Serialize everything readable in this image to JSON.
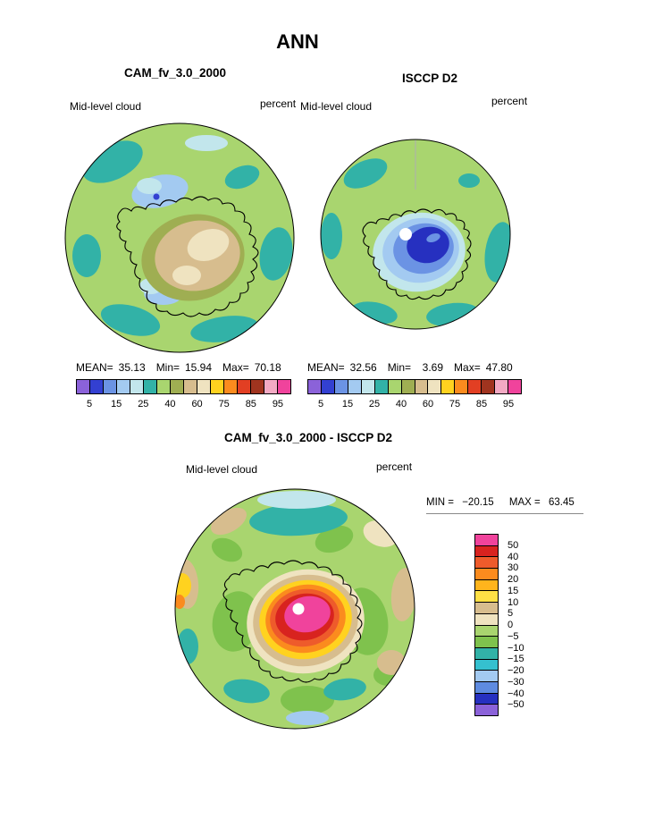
{
  "figure": {
    "season_title": "ANN",
    "background": "#ffffff"
  },
  "panels": {
    "cam": {
      "title": "CAM_fv_3.0_2000",
      "field": "Mid-level cloud",
      "units": "percent",
      "stats": {
        "mean_label": "MEAN=",
        "mean": "35.13",
        "min_label": "Min=",
        "min": "15.94",
        "max_label": "Max=",
        "max": "70.18"
      },
      "ticks": [
        "5",
        "15",
        "25",
        "40",
        "60",
        "75",
        "85",
        "95"
      ]
    },
    "isccp": {
      "title": "ISCCP D2",
      "field": "Mid-level cloud",
      "units": "percent",
      "stats": {
        "mean_label": "MEAN=",
        "mean": "32.56",
        "min_label": "Min=",
        "min": "3.69",
        "max_label": "Max=",
        "max": "47.80"
      },
      "ticks": [
        "5",
        "15",
        "25",
        "40",
        "60",
        "75",
        "85",
        "95"
      ]
    },
    "diff": {
      "title": "CAM_fv_3.0_2000 - ISCCP D2",
      "field": "Mid-level cloud",
      "units": "percent",
      "min_label": "MIN =",
      "min": "−20.15",
      "max_label": "MAX =",
      "max": "63.45",
      "ticks": [
        "50",
        "40",
        "30",
        "20",
        "15",
        "10",
        "5",
        "0",
        "−5",
        "−10",
        "−15",
        "−20",
        "−30",
        "−40",
        "−50"
      ]
    }
  },
  "palettes": {
    "cloud": [
      "#8b62d9",
      "#3340d1",
      "#6b93e4",
      "#a3caf1",
      "#c2e6ec",
      "#32b2a7",
      "#a9d56f",
      "#9fae52",
      "#d7bd8e",
      "#efe3c0",
      "#ffd21f",
      "#fb8b1e",
      "#e23f23",
      "#a0341f",
      "#f3aac4",
      "#f0439c"
    ],
    "difference": [
      "#f0439c",
      "#d8231f",
      "#ee5b2b",
      "#fb8b1e",
      "#ffb41c",
      "#ffe045",
      "#d7bd8e",
      "#efe3c0",
      "#a9d56f",
      "#7fc24d",
      "#32b2a7",
      "#35c0cf",
      "#a3caf1",
      "#5e8be0",
      "#2630c0",
      "#8b62d9"
    ],
    "map_background_green": "#a9d56f"
  },
  "chart_data": [
    {
      "type": "heatmap",
      "title": "CAM_fv_3.0_2000",
      "season": "ANN",
      "variable": "Mid-level cloud",
      "units": "percent",
      "projection": "south polar stereographic map",
      "stats": {
        "mean": 35.13,
        "min": 15.94,
        "max": 70.18
      },
      "contour_levels": [
        5,
        10,
        15,
        20,
        25,
        30,
        40,
        50,
        60,
        70,
        75,
        80,
        85,
        90,
        95
      ],
      "labeled_ticks": [
        5,
        15,
        25,
        40,
        60,
        75,
        85,
        95
      ],
      "legend_position": "below"
    },
    {
      "type": "heatmap",
      "title": "ISCCP D2",
      "season": "ANN",
      "variable": "Mid-level cloud",
      "units": "percent",
      "projection": "south polar stereographic map",
      "stats": {
        "mean": 32.56,
        "min": 3.69,
        "max": 47.8
      },
      "contour_levels": [
        5,
        10,
        15,
        20,
        25,
        30,
        40,
        50,
        60,
        70,
        75,
        80,
        85,
        90,
        95
      ],
      "labeled_ticks": [
        5,
        15,
        25,
        40,
        60,
        75,
        85,
        95
      ],
      "legend_position": "below"
    },
    {
      "type": "heatmap",
      "title": "CAM_fv_3.0_2000 - ISCCP D2",
      "season": "ANN",
      "variable": "Mid-level cloud",
      "units": "percent",
      "projection": "south polar stereographic map",
      "stats": {
        "min": -20.15,
        "max": 63.45
      },
      "contour_levels": [
        -50,
        -40,
        -30,
        -20,
        -15,
        -10,
        -5,
        0,
        5,
        10,
        15,
        20,
        30,
        40,
        50
      ],
      "legend_position": "right"
    }
  ]
}
